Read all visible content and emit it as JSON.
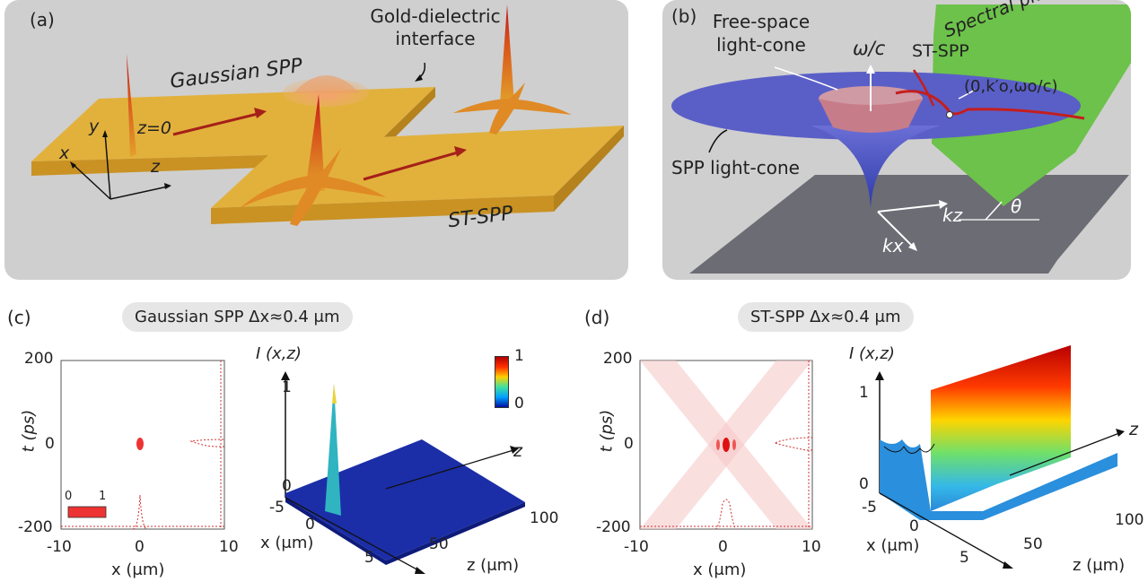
{
  "panel_a": {
    "label": "(a)",
    "interface_label_line1": "Gold-dielectric",
    "interface_label_line2": "interface",
    "gaussian_label": "Gaussian SPP",
    "stspp_label": "ST-SPP",
    "z0_label": "z=0",
    "axis_x": "x",
    "axis_y": "y",
    "axis_z": "z",
    "colors": {
      "gold": "#e2b13c",
      "background": "#cfcfcf",
      "arrow": "#a52019"
    }
  },
  "panel_b": {
    "label": "(b)",
    "free_space_line1": "Free-space",
    "free_space_line2": "light-cone",
    "omega_label": "ω/c",
    "stspp_label": "ST-SPP",
    "spectral_plane": "Spectral plane 𝒫(θ)",
    "point_label": "(0,k′o,ωo/c)",
    "spp_cone_label": "SPP light-cone",
    "kz_label": "kz",
    "kx_label": "kx",
    "theta_label": "θ",
    "colors": {
      "cone": "#5a5fc7",
      "plane": "#6cc24a",
      "curve": "#c41e1e",
      "floor": "#6c6c74"
    }
  },
  "panel_c": {
    "label": "(c)",
    "title": "Gaussian SPP Δx≈0.4 μm",
    "ylabel": "t (ps)",
    "xlabel": "x (μm)",
    "xticks": [
      "-10",
      "0",
      "10"
    ],
    "yticks": [
      "200",
      "0",
      "-200"
    ],
    "colorbar_min": "0",
    "colorbar_max": "1",
    "plot3d_label": "I (x,z)",
    "plot3d_zticks": [
      "1",
      "0"
    ],
    "plot3d_xticks": [
      "-5",
      "0",
      "5"
    ],
    "plot3d_x_label": "x (μm)",
    "plot3d_z_label": "z (μm)",
    "plot3d_zaxis": "z",
    "plot3d_zvals": [
      "50",
      "100"
    ],
    "cbar3d_max": "1",
    "cbar3d_min": "0"
  },
  "panel_d": {
    "label": "(d)",
    "title": "ST-SPP Δx≈0.4 μm",
    "ylabel": "t (ps)",
    "xlabel": "x (μm)",
    "xticks": [
      "-10",
      "0",
      "10"
    ],
    "yticks": [
      "200",
      "0",
      "-200"
    ],
    "plot3d_label": "I (x,z)",
    "plot3d_zticks": [
      "1",
      "0"
    ],
    "plot3d_xticks": [
      "-5",
      "0",
      "5"
    ],
    "plot3d_x_label": "x (μm)",
    "plot3d_z_label": "z (μm)",
    "plot3d_zaxis": "z",
    "plot3d_zvals": [
      "50",
      "100"
    ]
  }
}
